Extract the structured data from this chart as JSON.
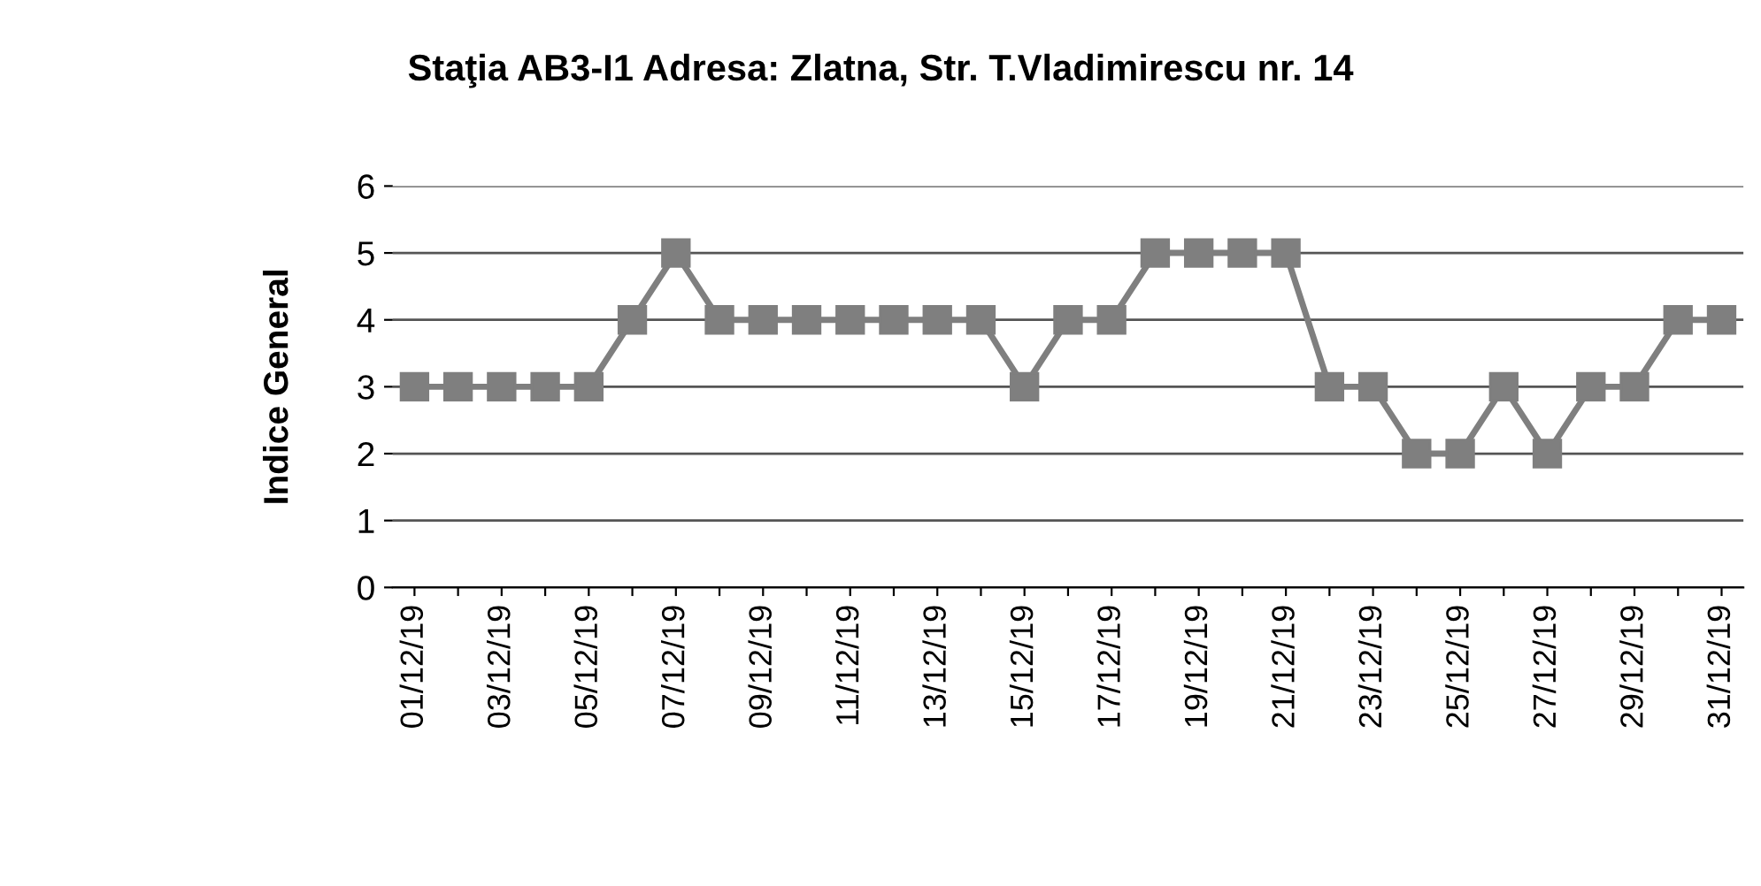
{
  "chart_data": {
    "type": "line",
    "title": "Staţia AB3-I1 Adresa: Zlatna, Str. T.Vladimirescu nr. 14",
    "ylabel": "Indice General",
    "categories": [
      "01/12/19",
      null,
      "03/12/19",
      null,
      "05/12/19",
      null,
      "07/12/19",
      null,
      "09/12/19",
      null,
      "11/12/19",
      null,
      "13/12/19",
      null,
      "15/12/19",
      null,
      "17/12/19",
      null,
      "19/12/19",
      null,
      "21/12/19",
      null,
      "23/12/19",
      null,
      "25/12/19",
      null,
      "27/12/19",
      null,
      "29/12/19",
      null,
      "31/12/19"
    ],
    "series": [
      {
        "color": "#7f7f7f",
        "values": [
          3,
          3,
          3,
          3,
          3,
          4,
          5,
          4,
          4,
          4,
          4,
          4,
          4,
          4,
          3,
          4,
          4,
          5,
          5,
          5,
          5,
          3,
          3,
          2,
          2,
          3,
          2,
          3,
          3,
          4,
          4
        ]
      }
    ],
    "ylim": [
      0,
      6
    ],
    "yticks": [
      0,
      1,
      2,
      3,
      4,
      5,
      6
    ],
    "grid": "y",
    "marker": "square",
    "line_style": "solid",
    "legend": false
  }
}
